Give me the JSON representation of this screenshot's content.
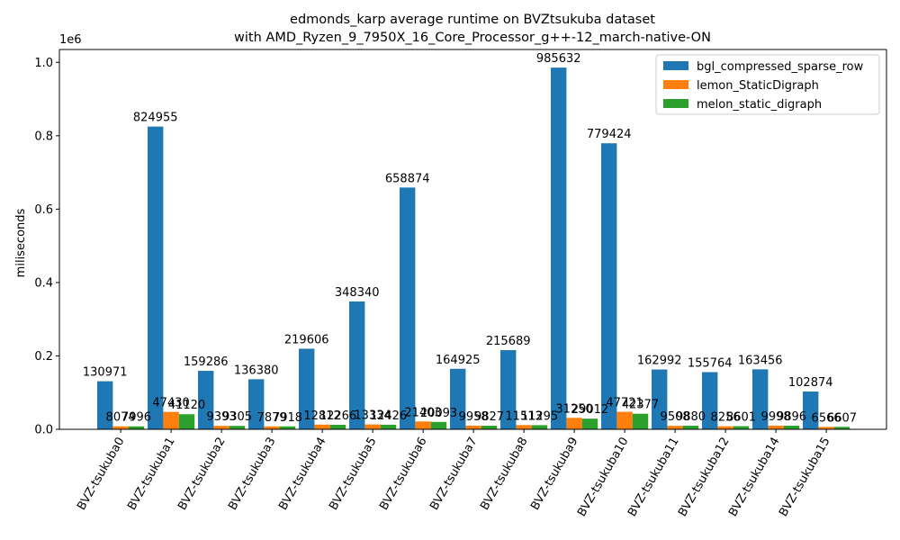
{
  "chart_data": {
    "type": "bar",
    "title": "edmonds_karp average runtime on BVZtsukuba dataset",
    "subtitle": "with AMD_Ryzen_9_7950X_16_Core_Processor_g++-12_march-native-ON",
    "xlabel": "",
    "ylabel": "miliseconds",
    "y_offset_label": "1e6",
    "ylim": [
      0,
      1035000
    ],
    "yticks": [
      "0.0",
      "0.2",
      "0.4",
      "0.6",
      "0.8",
      "1.0"
    ],
    "ytick_values": [
      0,
      200000,
      400000,
      600000,
      800000,
      1000000
    ],
    "legend_position": "top-right",
    "grid": false,
    "categories": [
      "BVZ-tsukuba0",
      "BVZ-tsukuba1",
      "BVZ-tsukuba2",
      "BVZ-tsukuba3",
      "BVZ-tsukuba4",
      "BVZ-tsukuba5",
      "BVZ-tsukuba6",
      "BVZ-tsukuba7",
      "BVZ-tsukuba8",
      "BVZ-tsukuba9",
      "BVZ-tsukuba10",
      "BVZ-tsukuba11",
      "BVZ-tsukuba12",
      "BVZ-tsukuba14",
      "BVZ-tsukuba15"
    ],
    "series": [
      {
        "name": "bgl_compressed_sparse_row",
        "color": "#1f77b4",
        "values": [
          130971,
          824955,
          159286,
          136380,
          219606,
          348340,
          658874,
          164925,
          215689,
          985632,
          779424,
          162992,
          155764,
          163456,
          102874
        ]
      },
      {
        "name": "lemon_StaticDigraph",
        "color": "#ff7f0e",
        "values": [
          8074,
          47430,
          9393,
          7879,
          12812,
          13334,
          21403,
          9958,
          11513,
          31250,
          47721,
          9508,
          8256,
          9998,
          6566
        ]
      },
      {
        "name": "melon_static_digraph",
        "color": "#2ca02c",
        "values": [
          7996,
          41120,
          9305,
          7918,
          12266,
          12426,
          20093,
          9827,
          11295,
          29012,
          42377,
          9880,
          8601,
          9896,
          6607
        ]
      }
    ]
  }
}
